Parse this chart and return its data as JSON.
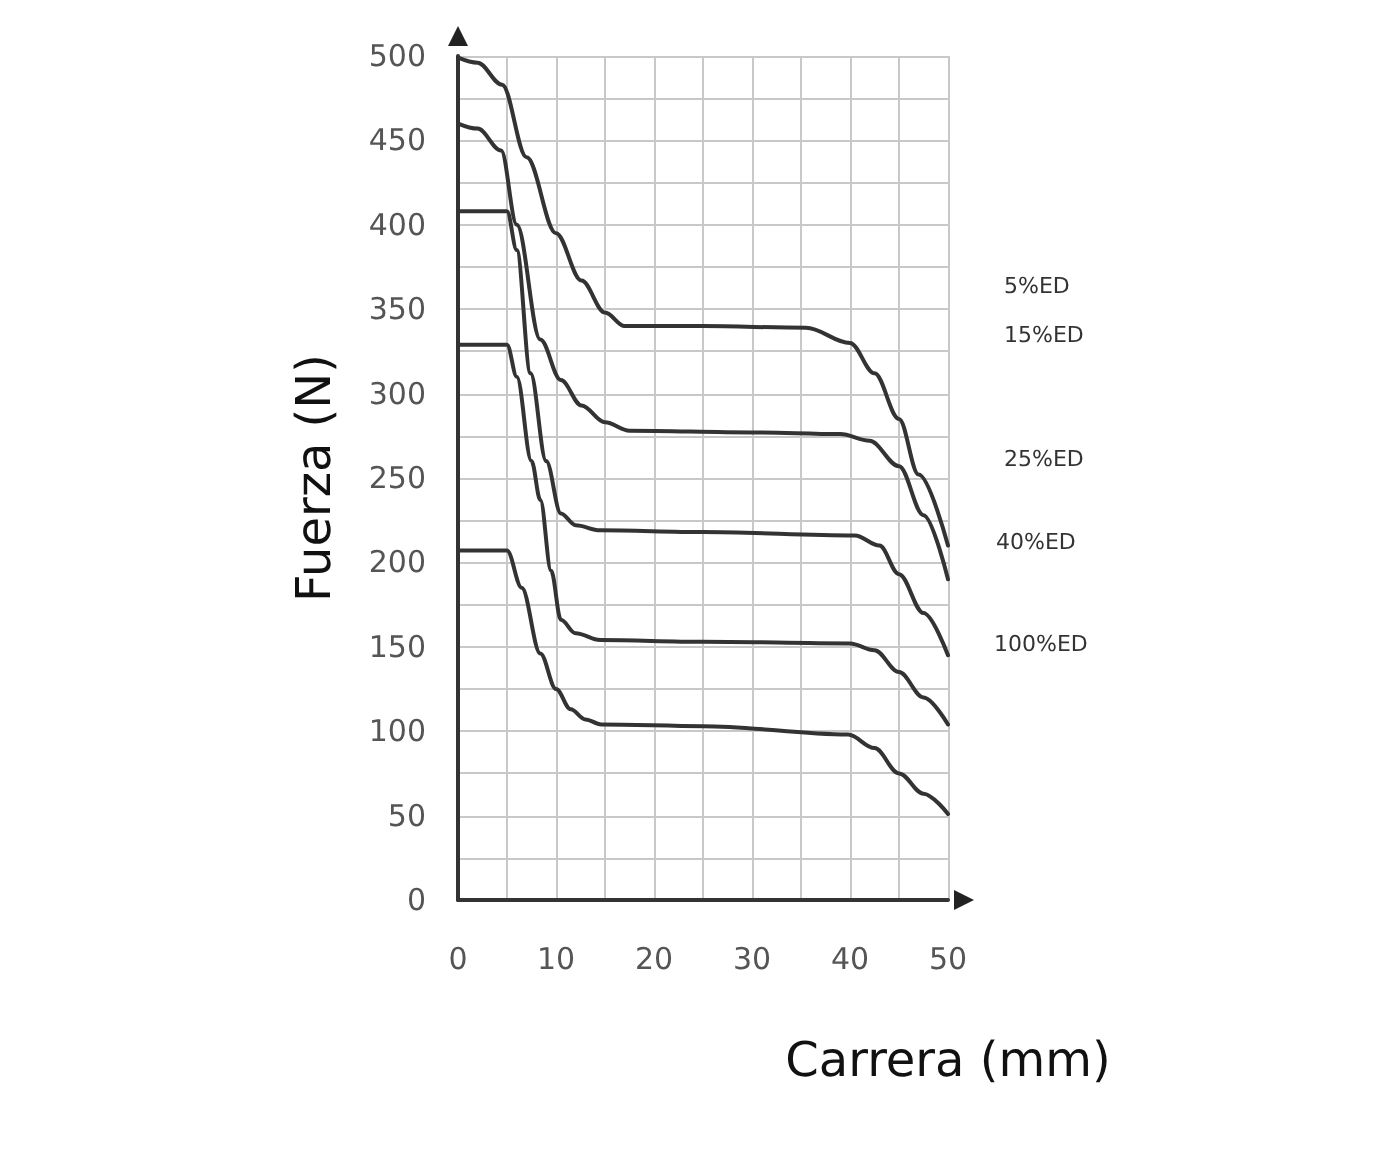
{
  "chart_data": {
    "type": "line",
    "xlabel": "Carrera (mm)",
    "ylabel": "Fuerza (N)",
    "xlim": [
      0,
      50
    ],
    "ylim": [
      0,
      500
    ],
    "xticks": [
      0,
      {
        "value": 5,
        "label": null
      },
      10,
      {
        "value": 15,
        "label": null
      },
      20,
      {
        "value": 25,
        "label": null
      },
      30,
      {
        "value": 35,
        "label": null
      },
      40,
      {
        "value": 45,
        "label": null
      },
      50
    ],
    "yticks": [
      0,
      {
        "value": 25,
        "label": null
      },
      50,
      {
        "value": 75,
        "label": null
      },
      100,
      {
        "value": 125,
        "label": null
      },
      150,
      {
        "value": 175,
        "label": null
      },
      200,
      {
        "value": 225,
        "label": null
      },
      250,
      {
        "value": 275,
        "label": null
      },
      300,
      {
        "value": 325,
        "label": null
      },
      350,
      {
        "value": 375,
        "label": null
      },
      400,
      {
        "value": 425,
        "label": null
      },
      450,
      {
        "value": 475,
        "label": null
      },
      500
    ],
    "grid": true,
    "marker": "none",
    "line_style": "solid",
    "series": [
      {
        "name": "5%ED",
        "color": "#333333",
        "x": [
          0,
          2,
          4.5,
          7,
          10,
          12.6,
          15,
          17,
          25,
          35.5,
          40,
          42.5,
          45,
          47,
          50
        ],
        "values": [
          499,
          496,
          483,
          440,
          395,
          367,
          348,
          340,
          340,
          339,
          330,
          312,
          285,
          252,
          210
        ]
      },
      {
        "name": "15%ED",
        "color": "#333333",
        "x": [
          0,
          2,
          4.4,
          6,
          8.4,
          10.5,
          12.6,
          15,
          17.5,
          30,
          39,
          42,
          45,
          47.5,
          50
        ],
        "values": [
          460,
          457,
          444,
          400,
          332,
          308,
          293,
          283,
          278,
          277,
          276,
          272,
          257,
          228,
          190
        ]
      },
      {
        "name": "25%ED",
        "color": "#333333",
        "x": [
          0,
          5,
          6,
          7.4,
          9,
          10.5,
          12,
          14.5,
          25,
          40.5,
          43,
          45,
          47.5,
          50
        ],
        "values": [
          408,
          408,
          385,
          312,
          260,
          229,
          222,
          219,
          218,
          216,
          210,
          193,
          170,
          145
        ]
      },
      {
        "name": "40%ED",
        "color": "#333333",
        "x": [
          0,
          5,
          6,
          7.5,
          8.4,
          9.5,
          10.5,
          12,
          14.5,
          25,
          40,
          42.5,
          45,
          47.5,
          50
        ],
        "values": [
          329,
          329,
          310,
          260,
          237,
          195,
          166,
          158,
          154,
          153,
          152,
          148,
          135,
          120,
          104
        ]
      },
      {
        "name": "100%ED",
        "color": "#333333",
        "x": [
          0,
          5,
          6.5,
          8.4,
          10,
          11.5,
          13,
          14.6,
          25,
          39.8,
          42.5,
          45,
          47.5,
          50
        ],
        "values": [
          207,
          207,
          185,
          146,
          125,
          113,
          107,
          104,
          103,
          98,
          90,
          75,
          63,
          51
        ]
      }
    ]
  }
}
